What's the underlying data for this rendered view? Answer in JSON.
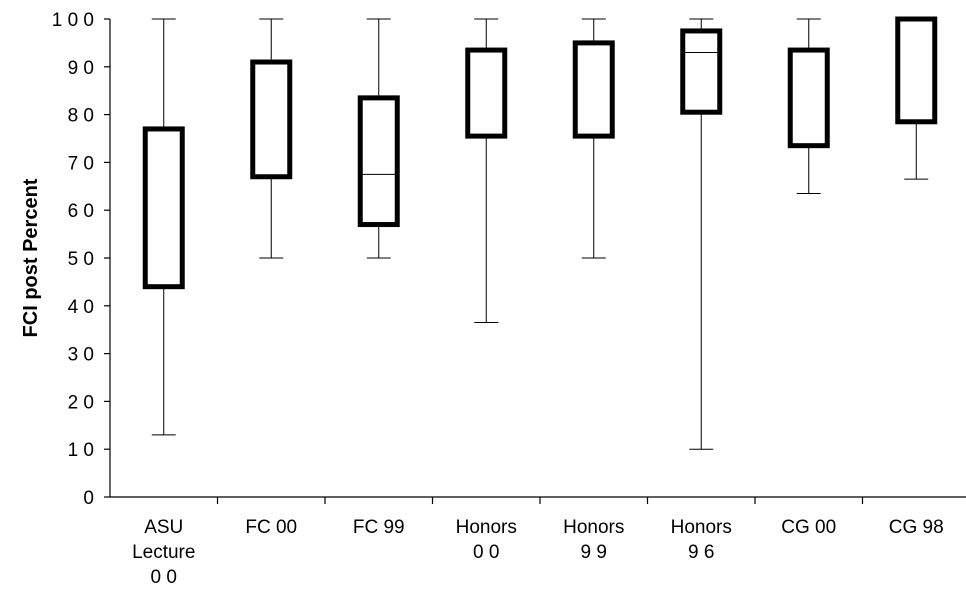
{
  "chart_data": {
    "type": "boxplot",
    "ylabel": "FCI  post  Percent",
    "ylim": [
      0,
      100
    ],
    "yticks": [
      "0",
      "1 0",
      "2 0",
      "3 0",
      "4 0",
      "5 0",
      "6 0",
      "7 0",
      "8 0",
      "9 0",
      "1 0 0"
    ],
    "categories": [
      {
        "label_lines": [
          "ASU",
          "Lecture",
          "0 0"
        ],
        "min": 13,
        "q1": 44,
        "median": null,
        "q3": 77,
        "max": 100
      },
      {
        "label_lines": [
          "FC 00"
        ],
        "min": 50,
        "q1": 67,
        "median": null,
        "q3": 91,
        "max": 100
      },
      {
        "label_lines": [
          "FC 99"
        ],
        "min": 50,
        "q1": 57,
        "median": 67.5,
        "q3": 83.5,
        "max": 100
      },
      {
        "label_lines": [
          "Honors",
          "0 0"
        ],
        "min": 36.5,
        "q1": 75.5,
        "median": null,
        "q3": 93.5,
        "max": 100
      },
      {
        "label_lines": [
          "Honors",
          "9 9"
        ],
        "min": 50,
        "q1": 75.5,
        "median": null,
        "q3": 95,
        "max": 100
      },
      {
        "label_lines": [
          "Honors",
          "9 6"
        ],
        "min": 10,
        "q1": 80.5,
        "median": 93,
        "q3": 97.5,
        "max": 100
      },
      {
        "label_lines": [
          "CG 00"
        ],
        "min": 63.5,
        "q1": 73.5,
        "median": null,
        "q3": 93.5,
        "max": 100
      },
      {
        "label_lines": [
          "CG 98"
        ],
        "min": 66.5,
        "q1": 78.5,
        "median": null,
        "q3": 100,
        "max": 100
      }
    ],
    "grid": false,
    "legend": "none"
  }
}
